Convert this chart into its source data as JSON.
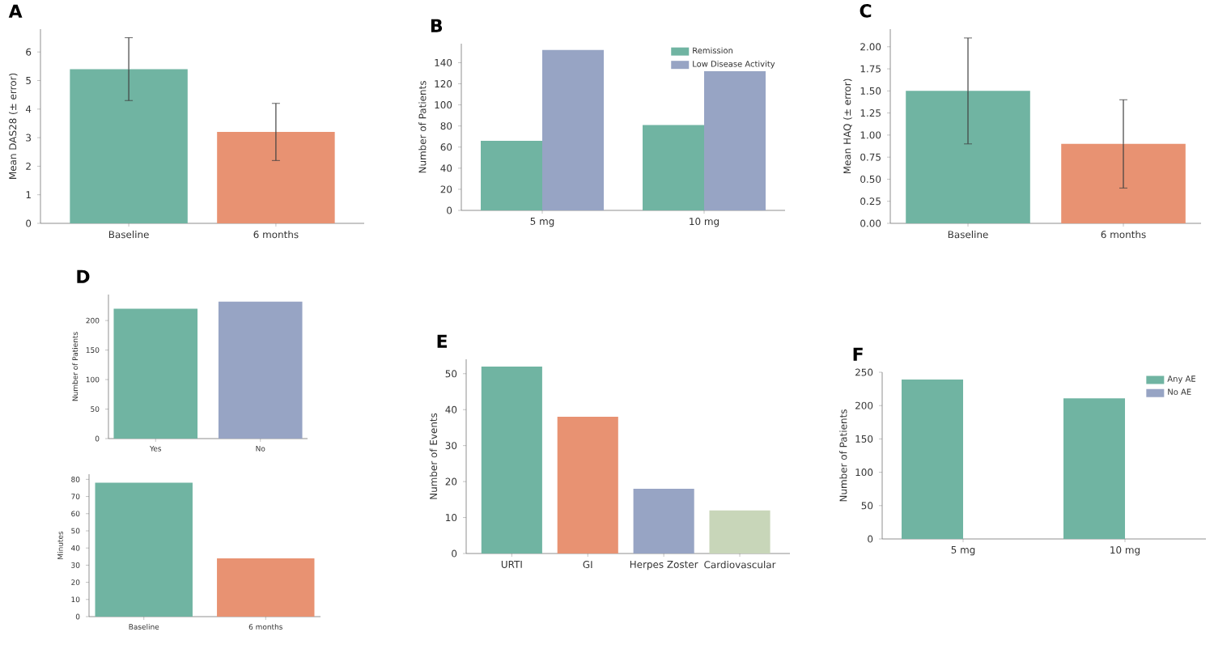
{
  "chart_data": [
    {
      "type": "bar",
      "title": "A",
      "ylabel": "Mean DAS28 (± error)",
      "categories": [
        "Baseline",
        "6 months"
      ],
      "values": [
        5.4,
        3.2
      ],
      "errors": [
        1.1,
        1.0
      ],
      "colors": [
        "#70b4a2",
        "#e89272"
      ],
      "ylim": [
        0,
        6.8
      ],
      "yticks": [
        0,
        1,
        2,
        3,
        4,
        5,
        6
      ]
    },
    {
      "type": "bar",
      "title": "B",
      "ylabel": "Number of Patients",
      "categories": [
        "5 mg",
        "10 mg"
      ],
      "series": [
        {
          "name": "Remission",
          "color": "#70b4a2",
          "values": [
            66,
            81
          ]
        },
        {
          "name": "Low Disease Activity",
          "color": "#97a4c4",
          "values": [
            152,
            132
          ]
        }
      ],
      "ylim": [
        0,
        158
      ],
      "yticks": [
        0,
        20,
        40,
        60,
        80,
        100,
        120,
        140
      ],
      "legend": "top right"
    },
    {
      "type": "bar",
      "title": "C",
      "ylabel": "Mean HAQ (± error)",
      "categories": [
        "Baseline",
        "6 months"
      ],
      "values": [
        1.5,
        0.9
      ],
      "errors": [
        0.6,
        0.5
      ],
      "colors": [
        "#70b4a2",
        "#e89272"
      ],
      "ylim": [
        0,
        2.2
      ],
      "yticks": [
        {
          "value": 0,
          "label": "0.00"
        },
        {
          "value": 0.25,
          "label": "0.25"
        },
        {
          "value": 0.5,
          "label": "0.50"
        },
        {
          "value": 0.75,
          "label": "0.75"
        },
        {
          "value": 1,
          "label": "1.00"
        },
        {
          "value": 1.25,
          "label": "1.25"
        },
        {
          "value": 1.5,
          "label": "1.50"
        },
        {
          "value": 1.75,
          "label": "1.75"
        },
        {
          "value": 2,
          "label": "2.00"
        }
      ]
    },
    {
      "type": "bar",
      "title": "D",
      "ylabel": "Number of Patients",
      "categories": [
        "Yes",
        "No"
      ],
      "values": [
        220,
        232
      ],
      "colors": [
        "#70b4a2",
        "#97a4c4"
      ],
      "ylim": [
        0,
        244
      ],
      "yticks": [
        0,
        50,
        100,
        150,
        200
      ]
    },
    {
      "type": "bar",
      "ylabel": "Minutes",
      "categories": [
        "Baseline",
        "6 months"
      ],
      "values": [
        78,
        34
      ],
      "colors": [
        "#70b4a2",
        "#e89272"
      ],
      "ylim": [
        0,
        83
      ],
      "yticks": [
        0,
        10,
        20,
        30,
        40,
        50,
        60,
        70,
        80
      ]
    },
    {
      "type": "bar",
      "title": "E",
      "ylabel": "Number of Events",
      "categories": [
        "URTI",
        "GI",
        "Herpes Zoster",
        "Cardiovascular"
      ],
      "values": [
        52,
        38,
        18,
        12
      ],
      "colors": [
        "#70b4a2",
        "#e89272",
        "#97a4c4",
        "#c8d6b9"
      ],
      "ylim": [
        0,
        54
      ],
      "yticks": [
        0,
        10,
        20,
        30,
        40,
        50
      ]
    },
    {
      "type": "bar",
      "title": "F",
      "ylabel": "Number of Patients",
      "categories": [
        "5 mg",
        "10 mg"
      ],
      "series": [
        {
          "name": "Any AE",
          "color": "#70b4a2",
          "values": [
            239,
            211
          ]
        },
        {
          "name": "No AE",
          "color": "#97a4c4",
          "values": [
            0,
            0
          ]
        }
      ],
      "ylim": [
        0,
        250
      ],
      "yticks": [
        0,
        50,
        100,
        150,
        200,
        250
      ],
      "legend": "top right"
    }
  ]
}
